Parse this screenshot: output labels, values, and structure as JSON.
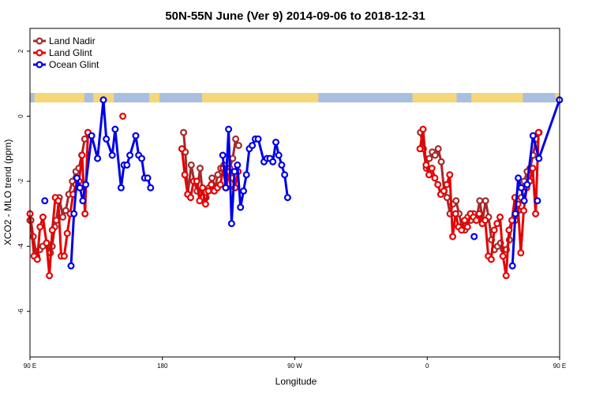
{
  "chart_data": {
    "type": "line",
    "title": "50N-55N June (Ver 9)   2014-09-06 to 2018-12-31",
    "xlabel": "Longitude",
    "ylabel": "XCO2 - MLO trend (ppm)",
    "xlim": [
      90,
      450
    ],
    "ylim": [
      -7.4,
      2.7
    ],
    "x_ticks": [
      {
        "value": 90,
        "label": "90 E"
      },
      {
        "value": 180,
        "label": "180"
      },
      {
        "value": 270,
        "label": "90 W"
      },
      {
        "value": 360,
        "label": "0"
      },
      {
        "value": 450,
        "label": "90 E"
      },
      {
        "value": 540,
        "label": "180"
      }
    ],
    "y_ticks": [
      {
        "value": 2,
        "label": "2"
      },
      {
        "value": 0,
        "label": "0"
      },
      {
        "value": -2,
        "label": "-2"
      },
      {
        "value": -4,
        "label": "-4"
      },
      {
        "value": -6,
        "label": "-6"
      }
    ],
    "grid": false,
    "legend_position": "top-left",
    "land_mask_colors": {
      "land": "#f5d77a",
      "ocean": "#a8bfdf"
    },
    "series": [
      {
        "name": "Land Nadir",
        "color": "#a52a2a",
        "segments": [
          [
            [
              90.0,
              -3.2
            ],
            [
              90.6,
              -3.2
            ],
            [
              92.2,
              -3.7
            ],
            [
              94.6,
              -4.3
            ],
            [
              96.7,
              -4.1
            ],
            [
              98.7,
              -4.0
            ],
            [
              101.5,
              -3.9
            ],
            [
              103.9,
              -4.2
            ],
            [
              105.1,
              -4.0
            ],
            [
              106.8,
              -3.4
            ],
            [
              107.9,
              -3.2
            ],
            [
              109.9,
              -2.5
            ],
            [
              112.3,
              -3.1
            ],
            [
              114.3,
              -2.9
            ],
            [
              116.4,
              -2.4
            ],
            [
              118.8,
              -2.0
            ],
            [
              121.2,
              -1.7
            ],
            [
              123.2,
              -1.6
            ],
            [
              125.2,
              -1.2
            ],
            [
              127.2,
              -0.7
            ],
            [
              129.3,
              -0.5
            ]
          ],
          [
            [
              194.4,
              -0.5
            ],
            [
              195.6,
              -1.1
            ],
            [
              197.2,
              -2.4
            ],
            [
              199.6,
              -1.5
            ],
            [
              201.6,
              -2.0
            ],
            [
              203.6,
              -2.3
            ],
            [
              205.6,
              -1.6
            ],
            [
              207.6,
              -2.5
            ],
            [
              209.7,
              -2.5
            ],
            [
              211.7,
              -2.2
            ],
            [
              213.7,
              -1.9
            ],
            [
              215.7,
              -2.2
            ],
            [
              217.7,
              -1.8
            ],
            [
              219.7,
              -1.6
            ],
            [
              221.8,
              -1.5
            ],
            [
              223.8,
              -1.7
            ],
            [
              225.8,
              -1.6
            ],
            [
              227.8,
              -1.3
            ],
            [
              229.8,
              -0.7
            ],
            [
              231.8,
              -0.9
            ]
          ],
          [
            [
              355.4,
              -0.5
            ],
            [
              357.4,
              -1.0
            ],
            [
              359.4,
              -1.6
            ],
            [
              361.4,
              -1.3
            ],
            [
              363.4,
              -1.1
            ],
            [
              365.4,
              -1.2
            ],
            [
              367.5,
              -1.0
            ],
            [
              369.5,
              -1.4
            ],
            [
              371.5,
              -2.3
            ],
            [
              373.5,
              -2.5
            ],
            [
              375.5,
              -3.0
            ],
            [
              377.5,
              -2.7
            ],
            [
              379.6,
              -2.6
            ],
            [
              381.6,
              -3.0
            ],
            [
              383.6,
              -3.4
            ],
            [
              385.6,
              -3.5
            ],
            [
              387.6,
              -3.1
            ],
            [
              389.6,
              -3.2
            ],
            [
              391.6,
              -3.0
            ],
            [
              393.7,
              -3.1
            ],
            [
              395.7,
              -2.6
            ],
            [
              397.7,
              -3.2
            ],
            [
              399.7,
              -2.6
            ],
            [
              401.7,
              -3.1
            ],
            [
              403.7,
              -3.8
            ],
            [
              405.7,
              -4.1
            ],
            [
              407.8,
              -4.0
            ],
            [
              409.8,
              -3.9
            ],
            [
              411.8,
              -4.1
            ],
            [
              413.8,
              -4.1
            ],
            [
              415.8,
              -3.8
            ],
            [
              417.8,
              -3.2
            ],
            [
              419.8,
              -3.2
            ],
            [
              421.9,
              -2.9
            ],
            [
              423.9,
              -2.5
            ],
            [
              425.9,
              -2.0
            ],
            [
              427.9,
              -1.7
            ],
            [
              429.9,
              -1.6
            ],
            [
              431.9,
              -1.2
            ],
            [
              434.0,
              -0.7
            ],
            [
              436.0,
              -0.5
            ]
          ]
        ]
      },
      {
        "name": "Land Glint",
        "color": "#e60000",
        "segments": [
          [
            [
              90.0,
              -3.0
            ],
            [
              92.8,
              -4.3
            ],
            [
              95.0,
              -4.4
            ],
            [
              96.8,
              -3.4
            ],
            [
              98.8,
              -3.1
            ],
            [
              101.2,
              -3.9
            ],
            [
              103.2,
              -4.9
            ],
            [
              105.2,
              -3.5
            ],
            [
              107.2,
              -2.5
            ],
            [
              109.2,
              -2.6
            ],
            [
              111.2,
              -4.3
            ],
            [
              113.3,
              -4.3
            ],
            [
              115.3,
              -3.6
            ],
            [
              117.3,
              -3.0
            ],
            [
              119.3,
              -2.4
            ],
            [
              121.3,
              -2.1
            ],
            [
              123.3,
              -2.0
            ],
            [
              125.4,
              -1.2
            ],
            [
              127.4,
              -3.0
            ],
            [
              129.4,
              -0.5
            ]
          ],
          [
            [
              193.2,
              -1.0
            ],
            [
              195.2,
              -1.8
            ],
            [
              197.2,
              -2.4
            ],
            [
              199.2,
              -2.5
            ],
            [
              201.2,
              -2.0
            ],
            [
              203.3,
              -2.0
            ],
            [
              205.3,
              -2.6
            ],
            [
              207.3,
              -2.2
            ],
            [
              209.3,
              -2.7
            ],
            [
              211.3,
              -2.3
            ],
            [
              213.3,
              -2.1
            ],
            [
              215.3,
              -2.3
            ],
            [
              217.4,
              -2.2
            ],
            [
              219.4,
              -2.1
            ],
            [
              221.4,
              -1.6
            ],
            [
              223.4,
              -2.2
            ],
            [
              225.4,
              -1.7
            ],
            [
              227.4,
              -1.9
            ],
            [
              229.4,
              -2.2
            ],
            [
              231.4,
              -1.7
            ]
          ],
          [
            [
              153.1,
              0.0
            ]
          ],
          [
            [
              355.1,
              -1.0
            ],
            [
              357.2,
              -0.4
            ],
            [
              359.2,
              -1.5
            ],
            [
              361.2,
              -1.8
            ],
            [
              363.2,
              -1.6
            ],
            [
              365.2,
              -1.9
            ],
            [
              367.2,
              -2.1
            ],
            [
              369.2,
              -2.4
            ],
            [
              371.3,
              -2.3
            ],
            [
              373.3,
              -2.1
            ],
            [
              375.3,
              -1.8
            ],
            [
              377.3,
              -3.7
            ],
            [
              379.3,
              -3.0
            ],
            [
              381.3,
              -3.4
            ],
            [
              383.3,
              -3.5
            ],
            [
              385.4,
              -3.2
            ],
            [
              387.4,
              -3.4
            ],
            [
              389.4,
              -3.0
            ],
            [
              391.4,
              -3.1
            ],
            [
              393.4,
              -3.2
            ],
            [
              395.4,
              -3.0
            ],
            [
              397.4,
              -3.3
            ],
            [
              399.4,
              -3.2
            ],
            [
              401.5,
              -4.3
            ],
            [
              403.5,
              -4.4
            ],
            [
              405.5,
              -3.5
            ],
            [
              407.5,
              -3.3
            ],
            [
              409.5,
              -3.1
            ],
            [
              411.5,
              -4.3
            ],
            [
              413.6,
              -4.9
            ],
            [
              415.6,
              -3.5
            ],
            [
              417.6,
              -3.2
            ],
            [
              419.6,
              -2.5
            ],
            [
              421.6,
              -2.7
            ],
            [
              423.6,
              -4.2
            ],
            [
              425.6,
              -2.9
            ],
            [
              427.6,
              -2.2
            ],
            [
              429.6,
              -2.0
            ],
            [
              431.7,
              -1.6
            ],
            [
              433.7,
              -3.0
            ],
            [
              435.7,
              -0.5
            ]
          ]
        ]
      },
      {
        "name": "Ocean Glint",
        "color": "#0000e6",
        "segments": [
          [
            [
              100.1,
              -2.6
            ]
          ],
          [
            [
              117.9,
              -4.6
            ],
            [
              119.9,
              -3.0
            ],
            [
              121.9,
              -1.9
            ],
            [
              123.9,
              -2.2
            ],
            [
              125.9,
              -2.6
            ],
            [
              127.9,
              -2.1
            ],
            [
              131.9,
              -0.6
            ],
            [
              135.9,
              -1.3
            ],
            [
              139.9,
              0.5
            ],
            [
              141.9,
              -0.7
            ],
            [
              145.9,
              -1.2
            ],
            [
              147.9,
              -0.4
            ],
            [
              151.9,
              -2.2
            ],
            [
              153.9,
              -1.5
            ],
            [
              155.9,
              -1.5
            ],
            [
              157.9,
              -1.2
            ],
            [
              161.9,
              -0.6
            ],
            [
              163.9,
              -1.2
            ],
            [
              165.9,
              -1.3
            ],
            [
              167.9,
              -1.9
            ],
            [
              170.0,
              -1.9
            ],
            [
              172.0,
              -2.2
            ]
          ],
          [
            [
              221.0,
              -1.2
            ],
            [
              223.0,
              -2.2
            ],
            [
              225.0,
              -0.4
            ],
            [
              227.0,
              -3.3
            ],
            [
              229.0,
              -1.7
            ],
            [
              231.0,
              -1.5
            ],
            [
              233.1,
              -2.8
            ],
            [
              235.1,
              -2.3
            ],
            [
              237.1,
              -1.8
            ],
            [
              239.1,
              -1.0
            ],
            [
              241.1,
              -0.9
            ],
            [
              243.1,
              -0.7
            ],
            [
              245.1,
              -0.7
            ],
            [
              249.1,
              -1.4
            ],
            [
              251.1,
              -1.3
            ],
            [
              253.1,
              -1.3
            ],
            [
              255.1,
              -1.4
            ],
            [
              257.1,
              -0.8
            ],
            [
              259.1,
              -1.2
            ],
            [
              261.1,
              -1.5
            ],
            [
              263.1,
              -1.8
            ],
            [
              265.1,
              -2.5
            ]
          ],
          [
            [
              391.9,
              -3.7
            ]
          ],
          [
            [
              434.9,
              -2.6
            ]
          ],
          [
            [
              417.9,
              -4.6
            ],
            [
              419.9,
              -3.0
            ],
            [
              421.9,
              -1.9
            ],
            [
              423.9,
              -2.2
            ],
            [
              425.9,
              -2.6
            ],
            [
              427.9,
              -2.1
            ],
            [
              431.9,
              -0.6
            ],
            [
              435.9,
              -1.3
            ],
            [
              449.9,
              0.5
            ]
          ]
        ]
      }
    ]
  }
}
